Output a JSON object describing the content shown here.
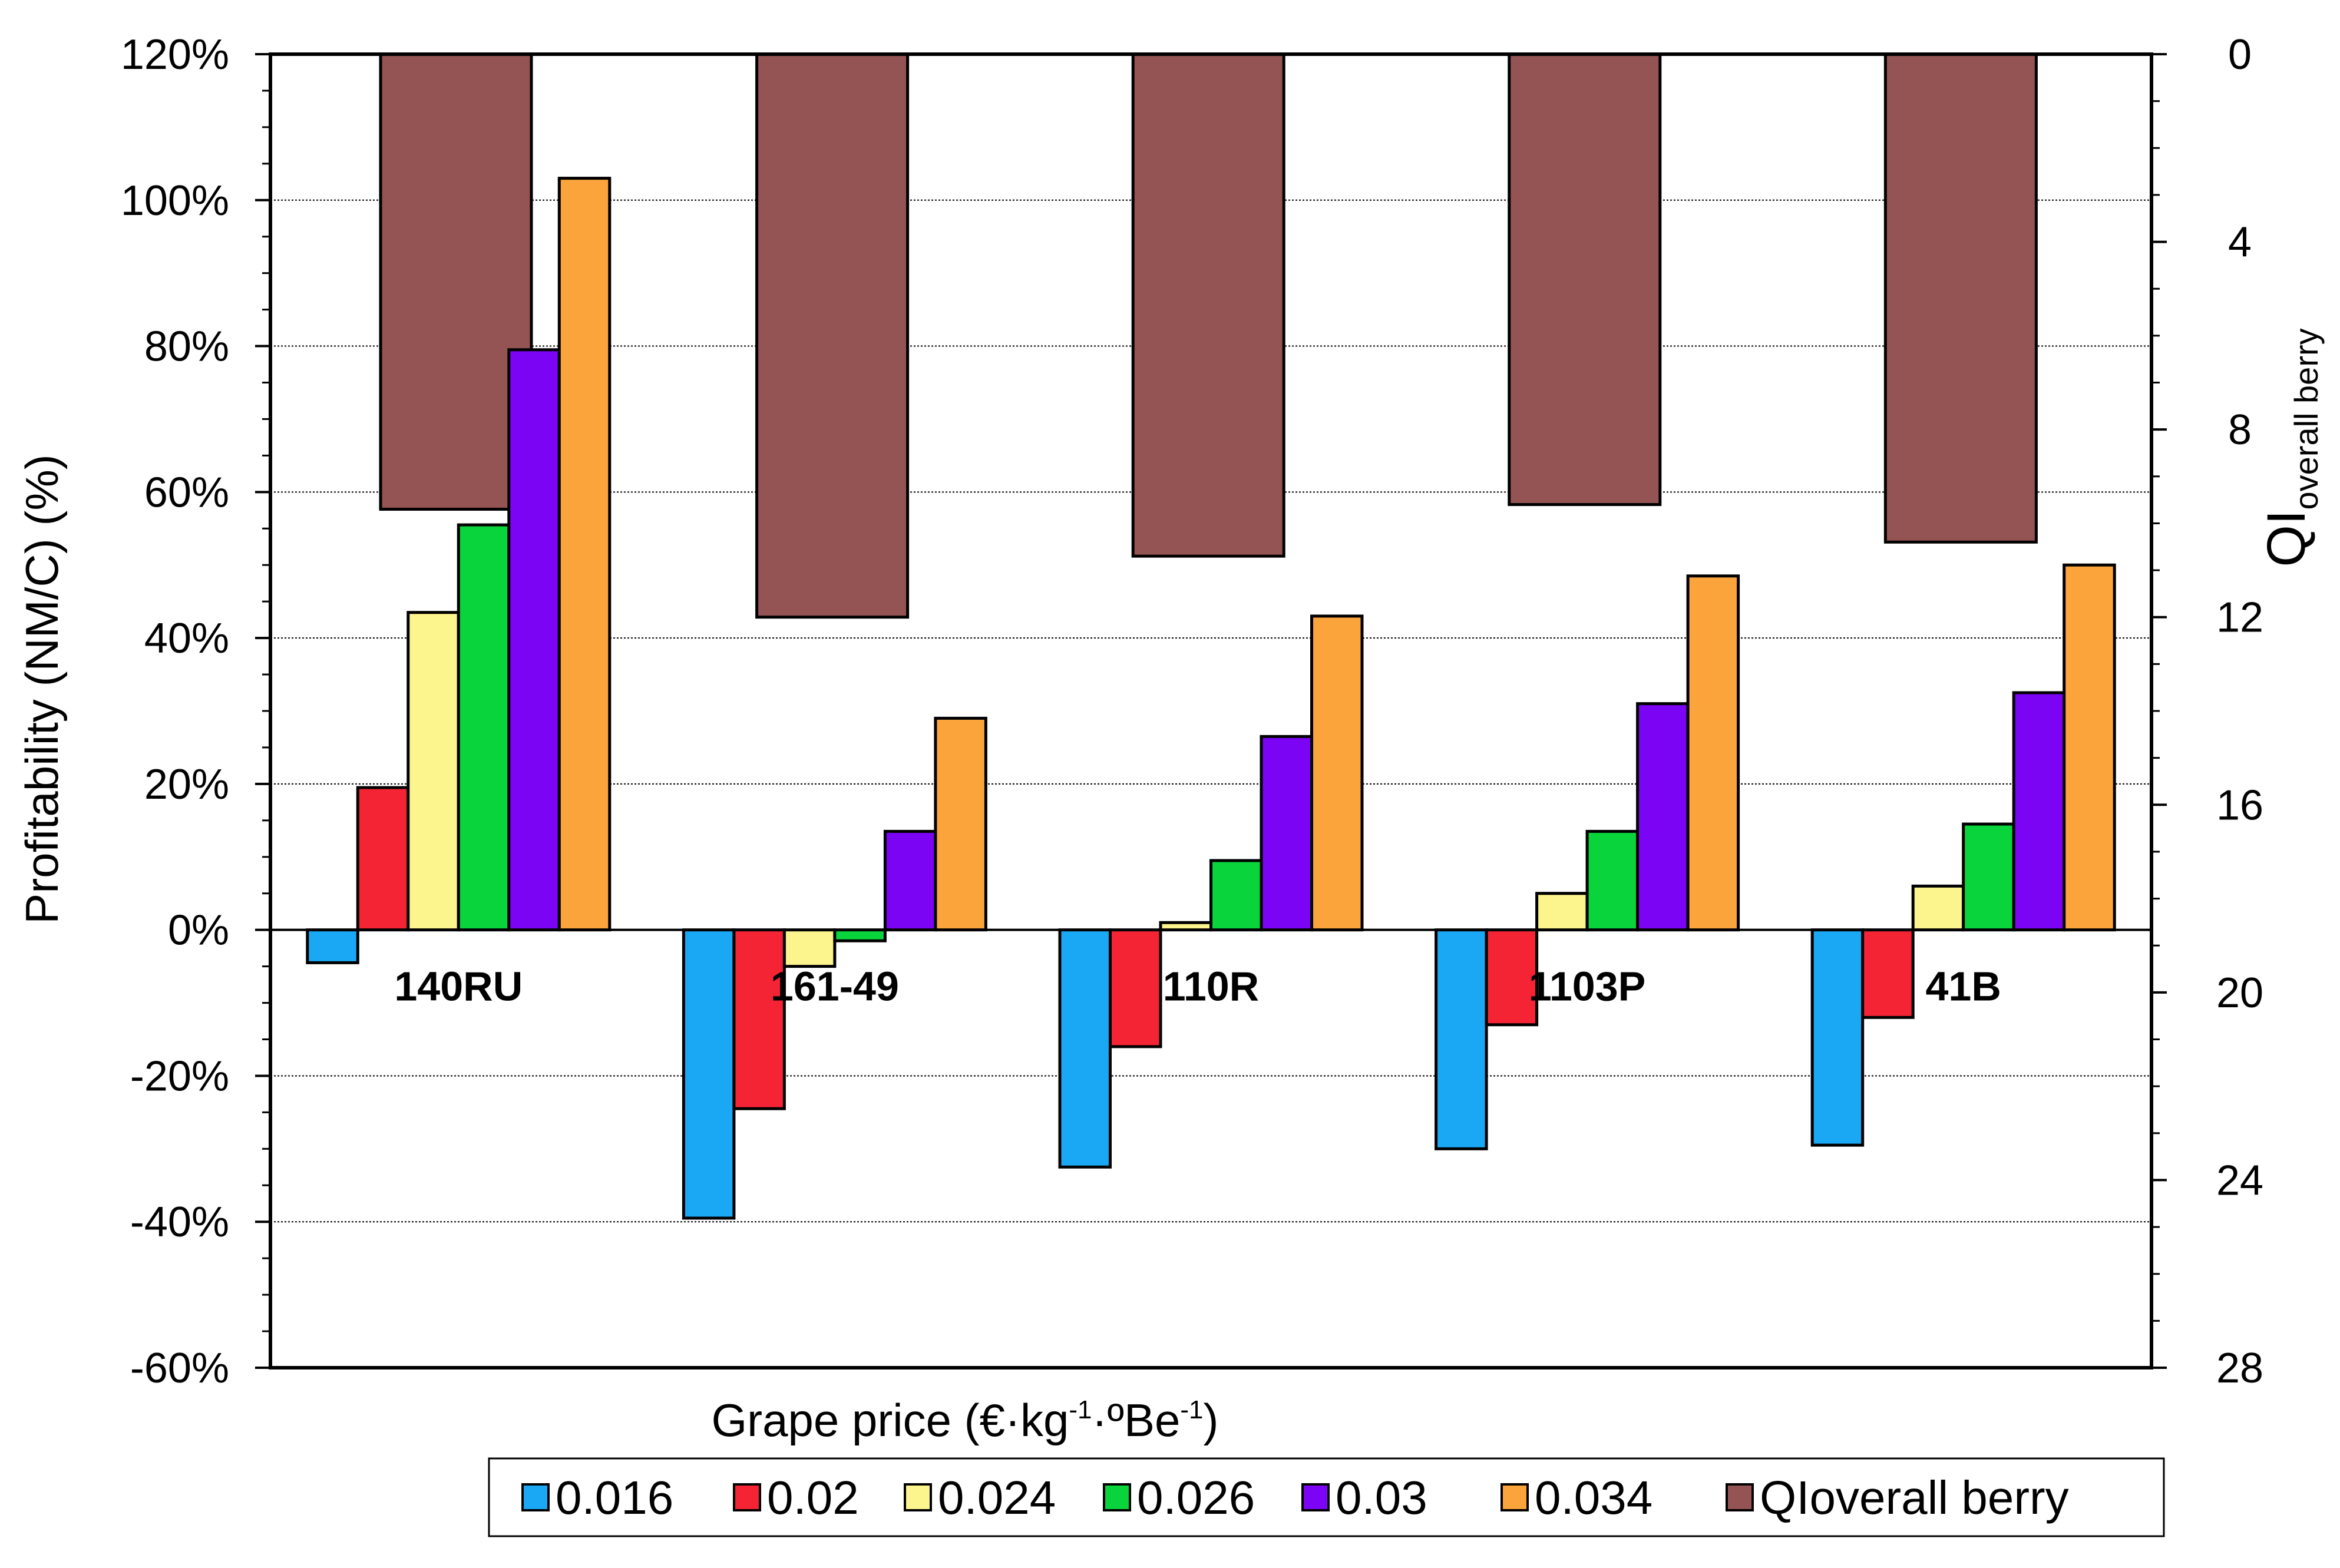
{
  "chart_data": {
    "type": "bar",
    "title": "",
    "xlabel": "Grape price (€·kg-1·ºBe-1)",
    "xlabel_parts": [
      "Grape price (€·kg",
      "-1",
      "·ºBe",
      "-1",
      ")"
    ],
    "ylabel": "Profitability  (NM/C) (%)",
    "y2label": "QIoverall berry",
    "y2label_main": "QI",
    "y2label_sub": "overall berry",
    "categories": [
      "140RU",
      "161-49",
      "110R",
      "1103P",
      "41B"
    ],
    "ylim": [
      -60,
      120
    ],
    "yticks": [
      -60,
      -40,
      -20,
      0,
      20,
      40,
      60,
      80,
      100,
      120
    ],
    "ytick_labels": [
      "-60%",
      "-40%",
      "-20%",
      "0%",
      "20%",
      "40%",
      "60%",
      "80%",
      "100%",
      "120%"
    ],
    "y2lim": [
      0,
      28
    ],
    "y2_reversed": true,
    "y2ticks": [
      0,
      4,
      8,
      12,
      16,
      20,
      24,
      28
    ],
    "y2tick_labels": [
      "0",
      "4",
      "8",
      "12",
      "16",
      "20",
      "24",
      "28"
    ],
    "gridlines_at": [
      -40,
      -20,
      20,
      40,
      60,
      80,
      100
    ],
    "series": [
      {
        "name": "0.016",
        "color": "#1aa8f4",
        "axis": "left",
        "values": [
          -4.5,
          -39.5,
          -32.5,
          -30,
          -29.5
        ]
      },
      {
        "name": "0.02",
        "color": "#f42434",
        "axis": "left",
        "values": [
          19.5,
          -24.5,
          -16,
          -13,
          -12
        ]
      },
      {
        "name": "0.024",
        "color": "#fcf48c",
        "axis": "left",
        "values": [
          43.5,
          -5,
          1,
          5,
          6
        ]
      },
      {
        "name": "0.026",
        "color": "#0ad43c",
        "axis": "left",
        "values": [
          55.5,
          -1.5,
          9.5,
          13.5,
          14.5
        ]
      },
      {
        "name": "0.03",
        "color": "#7c04f4",
        "axis": "left",
        "values": [
          79.5,
          13.5,
          26.5,
          31,
          32.5
        ]
      },
      {
        "name": "0.034",
        "color": "#fca43c",
        "axis": "left",
        "values": [
          103,
          29,
          43,
          48.5,
          50
        ]
      },
      {
        "name": "QIoverall berry",
        "color": "#945454",
        "axis": "right",
        "values": [
          9.7,
          12,
          10.7,
          9.6,
          10.4
        ]
      }
    ],
    "legend_position": "bottom-right"
  }
}
